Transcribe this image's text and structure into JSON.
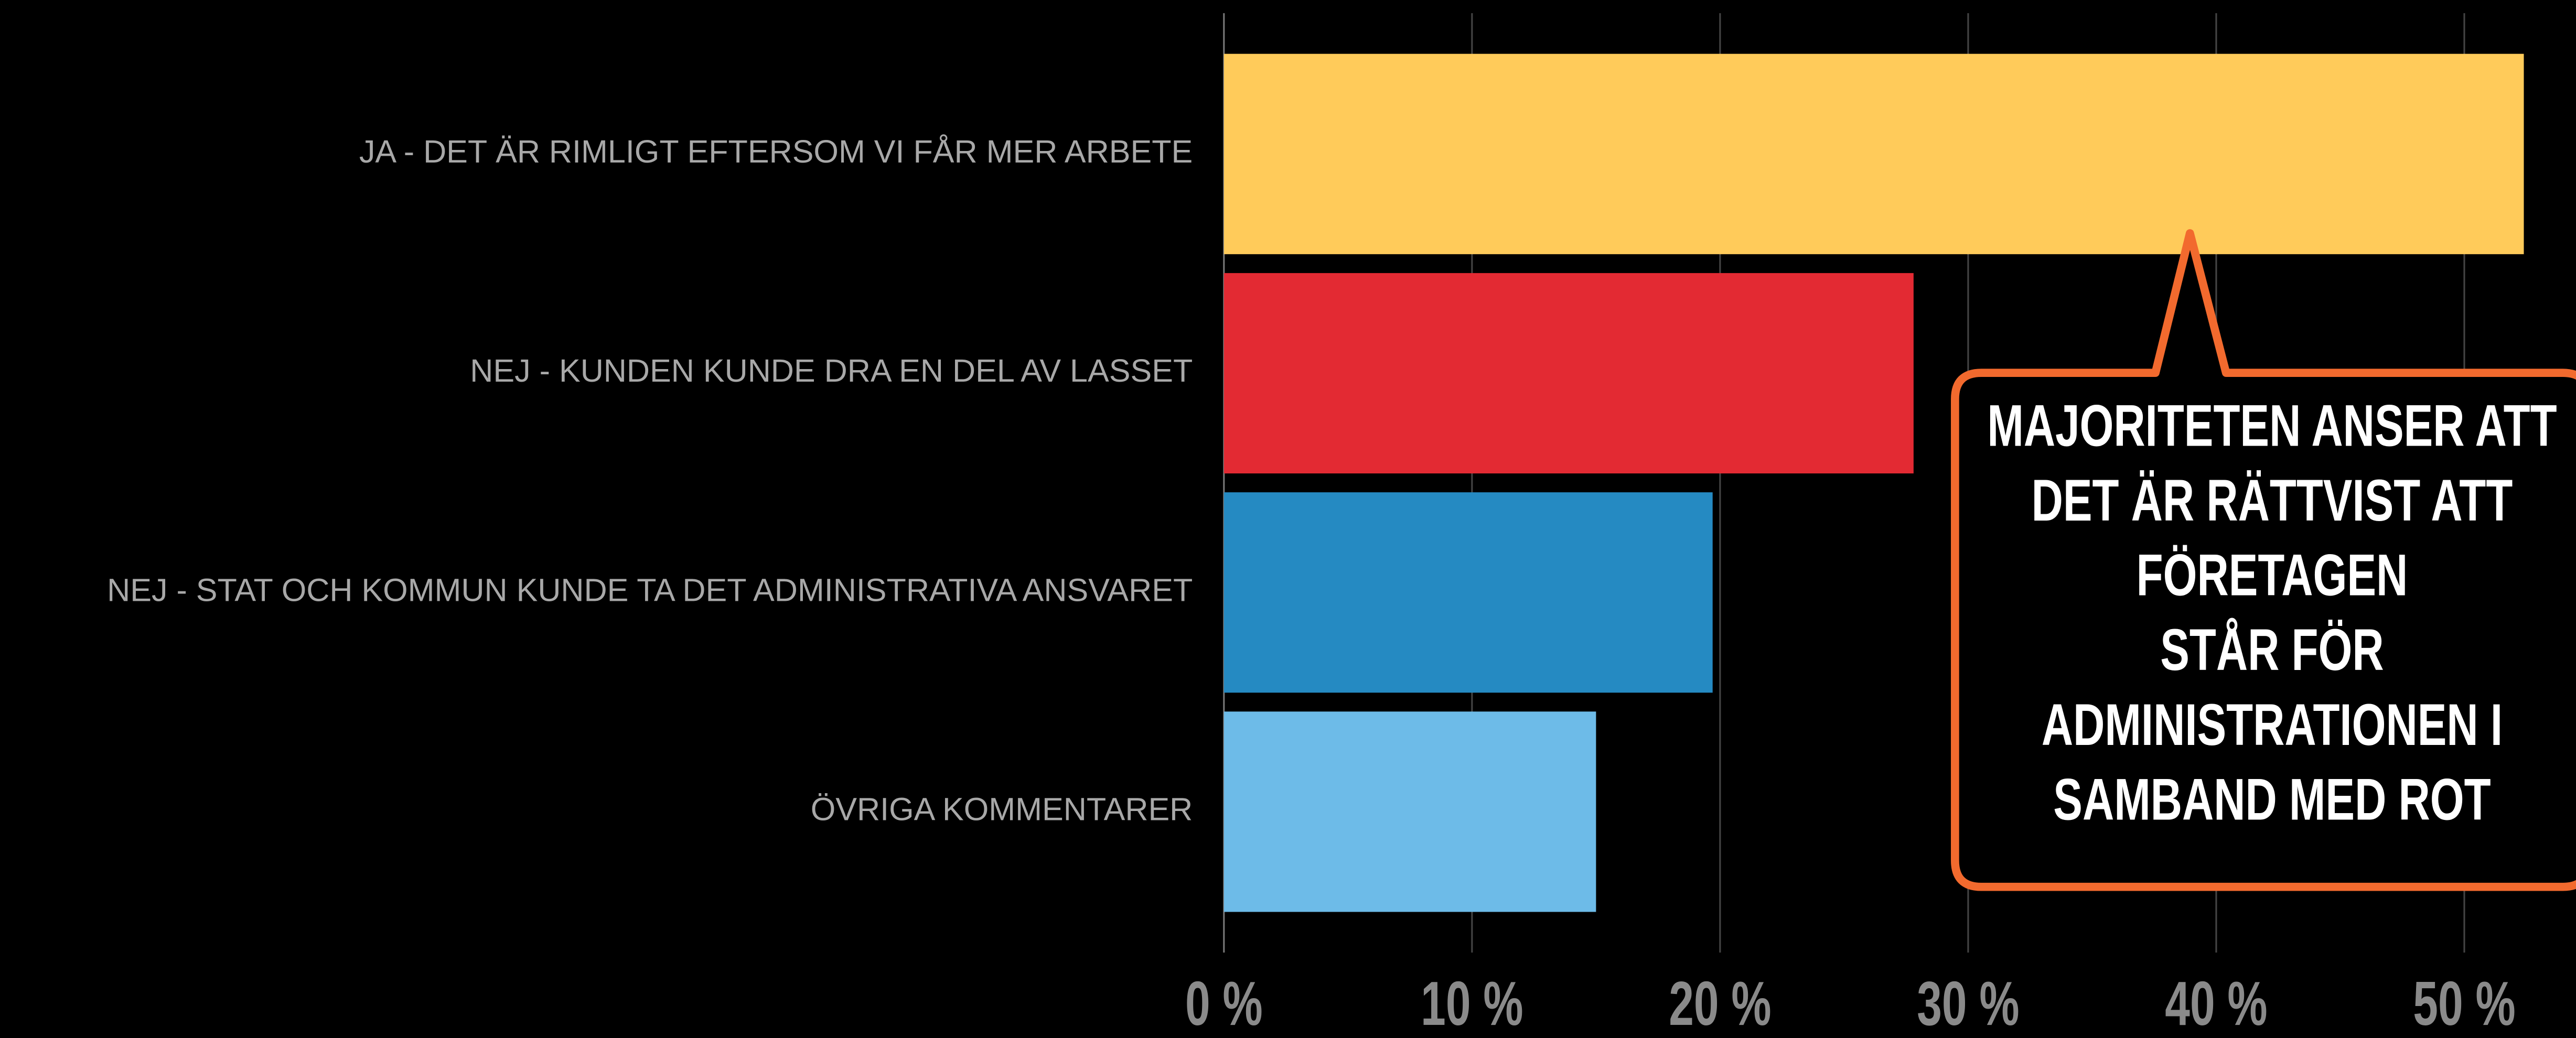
{
  "chart_data": {
    "type": "bar",
    "orientation": "horizontal",
    "categories": [
      "JA - DET ÄR RIMLIGT EFTERSOM VI FÅR MER ARBETE",
      "NEJ - KUNDEN KUNDE DRA EN DEL AV LASSET",
      "NEJ - STAT OCH KOMMUN KUNDE TA DET ADMINISTRATIVA  ANSVARET",
      "ÖVRIGA KOMMENTARER"
    ],
    "values": [
      52.4,
      27.8,
      19.7,
      15.0
    ],
    "colors": [
      "#ffcb5a",
      "#e32a33",
      "#258ac2",
      "#6dbbe8"
    ],
    "xlim": [
      0,
      54.5
    ],
    "xticks": [
      {
        "value": 0,
        "label": "0 %"
      },
      {
        "value": 10,
        "label": "10 %"
      },
      {
        "value": 20,
        "label": "20 %"
      },
      {
        "value": 30,
        "label": "30 %"
      },
      {
        "value": 40,
        "label": "40 %"
      },
      {
        "value": 50,
        "label": "50 %"
      }
    ],
    "grid": true,
    "annotation": [
      "MAJORITETEN ANSER ATT",
      "DET ÄR RÄTTVIST ATT",
      "FÖRETAGEN",
      "STÅR FÖR",
      "ADMINISTRATIONEN I",
      "SAMBAND MED ROT"
    ]
  }
}
